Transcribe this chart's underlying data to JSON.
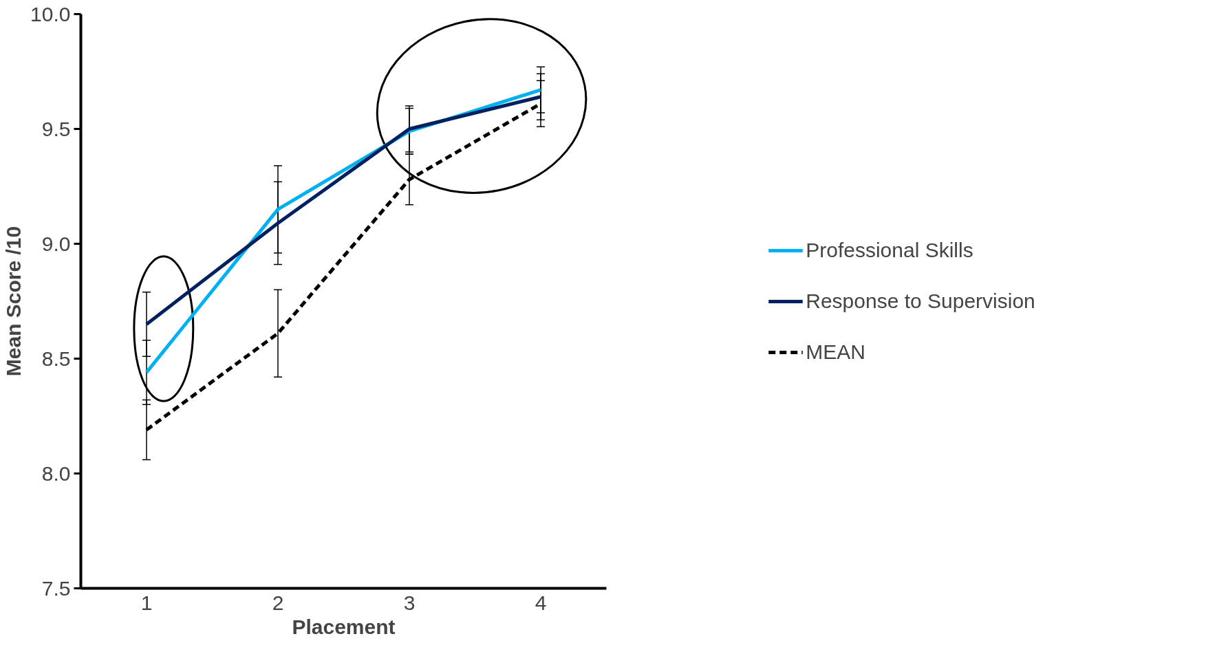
{
  "chart_data": {
    "type": "line",
    "xlabel": "Placement",
    "ylabel": "Mean Score /10",
    "categories": [
      "1",
      "2",
      "3",
      "4"
    ],
    "series": [
      {
        "name": "Professional Skills",
        "color": "#00b0f0",
        "line_style": "solid",
        "values": [
          8.44,
          9.15,
          9.49,
          9.67
        ],
        "errors": [
          0.14,
          0.19,
          0.1,
          0.1
        ]
      },
      {
        "name": "Response to Supervision",
        "color": "#002060",
        "line_style": "solid",
        "values": [
          8.65,
          9.09,
          9.5,
          9.64
        ],
        "errors": [
          0.14,
          0.18,
          0.1,
          0.1
        ]
      },
      {
        "name": "MEAN",
        "color": "#000000",
        "line_style": "dashed",
        "values": [
          8.19,
          8.61,
          9.28,
          9.61
        ],
        "errors": [
          0.13,
          0.19,
          0.11,
          0.1
        ]
      }
    ],
    "ylim": [
      7.5,
      10.0
    ],
    "yticks": [
      {
        "value": 7.5,
        "label": "7.5"
      },
      {
        "value": 8.0,
        "label": "8.0"
      },
      {
        "value": 8.5,
        "label": "8.5"
      },
      {
        "value": 9.0,
        "label": "9.0"
      },
      {
        "value": 9.5,
        "label": "9.5"
      },
      {
        "value": 10.0,
        "label": "10.0"
      }
    ],
    "grid": false,
    "legend": "right"
  }
}
